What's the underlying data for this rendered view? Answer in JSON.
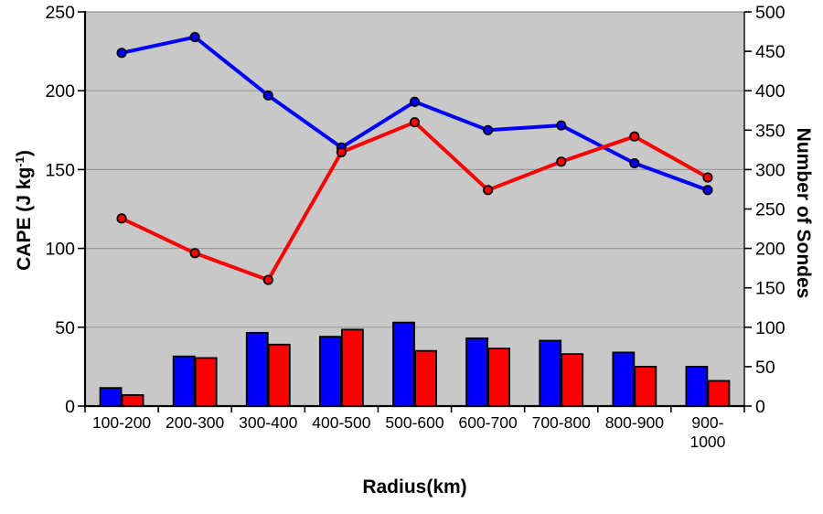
{
  "chart_data": {
    "type": "composite-bar-line",
    "categories": [
      "100-200",
      "200-300",
      "300-400",
      "400-500",
      "500-600",
      "600-700",
      "700-800",
      "800-900",
      "900-1000"
    ],
    "category_display_lines": [
      [
        "100-200"
      ],
      [
        "200-300"
      ],
      [
        "300-400"
      ],
      [
        "400-500"
      ],
      [
        "500-600"
      ],
      [
        "600-700"
      ],
      [
        "700-800"
      ],
      [
        "800-900"
      ],
      [
        "900-",
        "1000"
      ]
    ],
    "x_axis": {
      "label": "Radius(km)"
    },
    "left_axis": {
      "label_text": "CAPE (J kg",
      "label_superscript": "-1",
      "label_suffix": ")",
      "min": 0,
      "max": 250,
      "ticks": [
        0,
        50,
        100,
        150,
        200,
        250
      ]
    },
    "right_axis": {
      "label": "Number of Sondes",
      "min": 0,
      "max": 500,
      "ticks": [
        0,
        50,
        100,
        150,
        200,
        250,
        300,
        350,
        400,
        450,
        500
      ]
    },
    "gridlines_left_values": [
      50,
      100,
      150,
      200,
      250
    ],
    "line_series": [
      {
        "name": "blue-cape-line",
        "color": "#0000FA",
        "axis": "left",
        "values": [
          224,
          234,
          197,
          164,
          193,
          175,
          178,
          154,
          137
        ]
      },
      {
        "name": "red-cape-line",
        "color": "#FA0000",
        "axis": "left",
        "values": [
          119,
          97,
          80,
          161,
          180,
          137,
          155,
          171,
          145
        ]
      }
    ],
    "bar_series": [
      {
        "name": "blue-sonde-bars",
        "color": "#0000FA",
        "axis": "right",
        "values": [
          23,
          63,
          93,
          88,
          106,
          86,
          83,
          68,
          50
        ]
      },
      {
        "name": "red-sonde-bars",
        "color": "#FA0000",
        "axis": "right",
        "values": [
          14,
          61,
          78,
          97,
          70,
          73,
          66,
          50,
          32
        ]
      }
    ],
    "legend": "none",
    "grid": "horizontal-only"
  },
  "colors": {
    "plot_background": "#C8C8C8",
    "gridline": "#9B9B9B",
    "axis_line": "#000000",
    "plot_border_top": "#999999",
    "plot_border_right": "#3A3A3A",
    "series_blue": "#0000FA",
    "series_red": "#FA0000"
  }
}
